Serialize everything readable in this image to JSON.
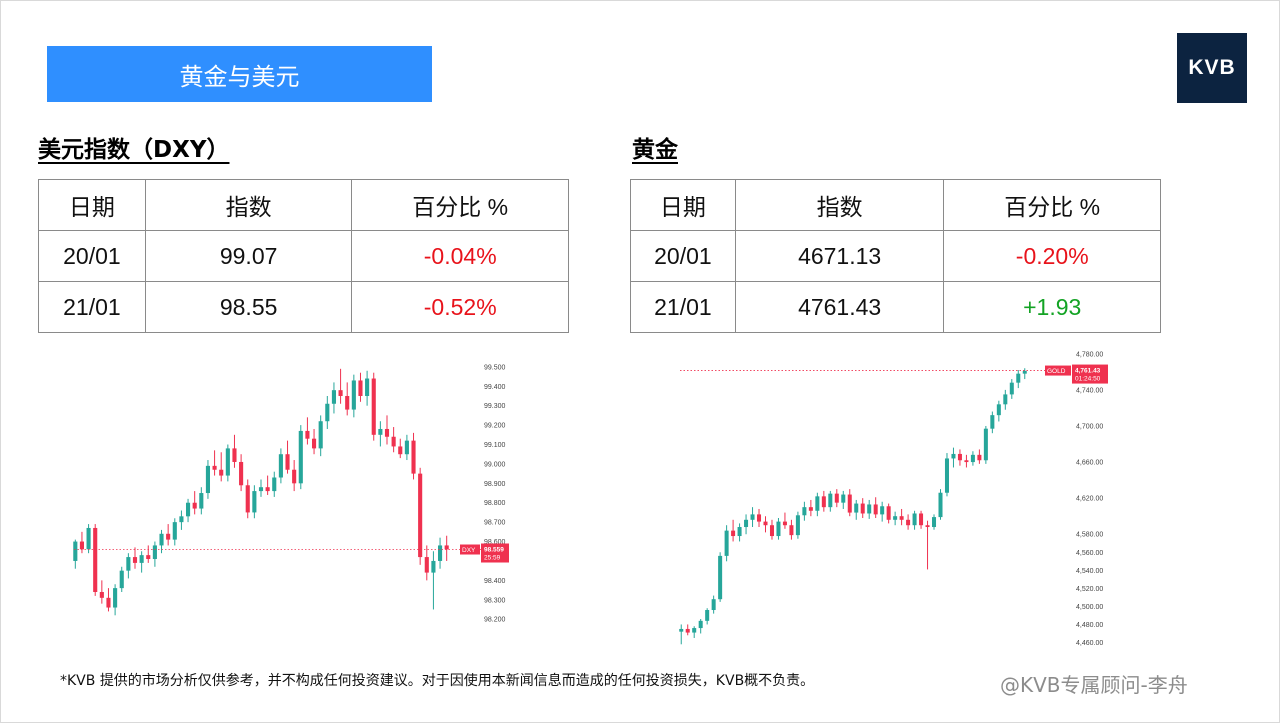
{
  "page": {
    "banner_title": "黄金与美元",
    "logo_text": "KVB"
  },
  "dxy": {
    "title": "美元指数（DXY）",
    "headers": [
      "日期",
      "指数",
      "百分比 %"
    ],
    "rows": [
      {
        "date": "20/01",
        "value": "99.07",
        "pct": "-0.04%"
      },
      {
        "date": "21/01",
        "value": "98.55",
        "pct": "-0.52%"
      }
    ]
  },
  "gold": {
    "title": "黄金",
    "headers": [
      "日期",
      "指数",
      "百分比 %"
    ],
    "rows": [
      {
        "date": "20/01",
        "value": "4671.13",
        "pct": "-0.20%"
      },
      {
        "date": "21/01",
        "value": "4761.43",
        "pct": "+1.93"
      }
    ]
  },
  "footer": {
    "disclaimer": "*KVB 提供的市场分析仅供参考，并不构成任何投资建议。对于因使用本新闻信息而造成的任何投资损失，KVB概不负责。",
    "watermark": "@KVB专属顾问-李舟"
  },
  "colors": {
    "up": "#26a69a",
    "down": "#ef314f",
    "negative_text": "#e8131b",
    "positive_text": "#13a324",
    "banner": "#2f8fff",
    "logo_bg": "#0c2340"
  },
  "chart_data": [
    {
      "type": "candlestick",
      "symbol": "DXY",
      "last_price": "98.559",
      "countdown": "25:59",
      "y_ticks": [
        "99.500",
        "99.400",
        "99.300",
        "99.200",
        "99.100",
        "99.000",
        "98.900",
        "98.800",
        "98.700",
        "98.600",
        "98.400",
        "98.300",
        "98.200"
      ],
      "ylim": [
        98.17,
        99.52
      ],
      "candles": [
        [
          98.5,
          98.61,
          98.46,
          98.6
        ],
        [
          98.6,
          98.65,
          98.54,
          98.56
        ],
        [
          98.56,
          98.69,
          98.54,
          98.67
        ],
        [
          98.67,
          98.69,
          98.32,
          98.34
        ],
        [
          98.34,
          98.4,
          98.28,
          98.31
        ],
        [
          98.31,
          98.36,
          98.24,
          98.26
        ],
        [
          98.26,
          98.38,
          98.22,
          98.36
        ],
        [
          98.36,
          98.47,
          98.34,
          98.45
        ],
        [
          98.45,
          98.54,
          98.41,
          98.52
        ],
        [
          98.52,
          98.57,
          98.46,
          98.49
        ],
        [
          98.49,
          98.55,
          98.44,
          98.53
        ],
        [
          98.53,
          98.58,
          98.49,
          98.51
        ],
        [
          98.51,
          98.6,
          98.47,
          98.58
        ],
        [
          98.58,
          98.66,
          98.54,
          98.64
        ],
        [
          98.64,
          98.69,
          98.58,
          98.61
        ],
        [
          98.61,
          98.72,
          98.58,
          98.7
        ],
        [
          98.7,
          98.76,
          98.66,
          98.73
        ],
        [
          98.73,
          98.82,
          98.7,
          98.8
        ],
        [
          98.8,
          98.86,
          98.74,
          98.77
        ],
        [
          98.77,
          98.88,
          98.74,
          98.85
        ],
        [
          98.85,
          99.02,
          98.82,
          98.99
        ],
        [
          98.99,
          99.07,
          98.94,
          98.97
        ],
        [
          98.97,
          99.06,
          98.91,
          98.94
        ],
        [
          98.94,
          99.1,
          98.91,
          99.08
        ],
        [
          99.08,
          99.15,
          98.98,
          99.01
        ],
        [
          99.01,
          99.05,
          98.86,
          98.89
        ],
        [
          98.89,
          98.92,
          98.72,
          98.75
        ],
        [
          98.75,
          98.89,
          98.72,
          98.86
        ],
        [
          98.86,
          98.92,
          98.83,
          98.88
        ],
        [
          98.88,
          98.94,
          98.84,
          98.86
        ],
        [
          98.86,
          98.96,
          98.83,
          98.93
        ],
        [
          98.93,
          99.08,
          98.9,
          99.05
        ],
        [
          99.05,
          99.12,
          98.95,
          98.97
        ],
        [
          98.97,
          99.02,
          98.86,
          98.9
        ],
        [
          98.9,
          99.2,
          98.87,
          99.17
        ],
        [
          99.17,
          99.24,
          99.1,
          99.13
        ],
        [
          99.13,
          99.18,
          99.05,
          99.08
        ],
        [
          99.08,
          99.25,
          99.04,
          99.22
        ],
        [
          99.22,
          99.35,
          99.18,
          99.31
        ],
        [
          99.31,
          99.42,
          99.26,
          99.38
        ],
        [
          99.38,
          99.49,
          99.31,
          99.35
        ],
        [
          99.35,
          99.42,
          99.25,
          99.28
        ],
        [
          99.28,
          99.46,
          99.24,
          99.43
        ],
        [
          99.43,
          99.47,
          99.32,
          99.35
        ],
        [
          99.35,
          99.48,
          99.3,
          99.44
        ],
        [
          99.44,
          99.47,
          99.12,
          99.15
        ],
        [
          99.15,
          99.22,
          99.09,
          99.18
        ],
        [
          99.18,
          99.25,
          99.1,
          99.14
        ],
        [
          99.14,
          99.19,
          99.06,
          99.09
        ],
        [
          99.09,
          99.13,
          99.03,
          99.05
        ],
        [
          99.05,
          99.15,
          99.02,
          99.12
        ],
        [
          99.12,
          99.16,
          98.92,
          98.95
        ],
        [
          98.95,
          98.98,
          98.48,
          98.52
        ],
        [
          98.52,
          98.58,
          98.4,
          98.44
        ],
        [
          98.44,
          98.55,
          98.25,
          98.5
        ],
        [
          98.5,
          98.62,
          98.46,
          98.58
        ],
        [
          98.58,
          98.63,
          98.5,
          98.56
        ]
      ]
    },
    {
      "type": "candlestick",
      "symbol": "GOLD",
      "last_price": "4,761.43",
      "countdown": "01:24:50",
      "y_ticks": [
        "4,780.00",
        "4,740.00",
        "4,700.00",
        "4,660.00",
        "4,620.00",
        "4,580.00",
        "4,560.00",
        "4,540.00",
        "4,520.00",
        "4,500.00",
        "4,480.00",
        "4,460.00"
      ],
      "ylim": [
        4455,
        4782
      ],
      "candles": [
        [
          4472,
          4480,
          4458,
          4475
        ],
        [
          4475,
          4480,
          4468,
          4471
        ],
        [
          4471,
          4478,
          4465,
          4476
        ],
        [
          4476,
          4486,
          4470,
          4484
        ],
        [
          4484,
          4498,
          4480,
          4496
        ],
        [
          4496,
          4512,
          4492,
          4508
        ],
        [
          4508,
          4560,
          4505,
          4556
        ],
        [
          4556,
          4590,
          4550,
          4584
        ],
        [
          4584,
          4596,
          4572,
          4578
        ],
        [
          4578,
          4592,
          4572,
          4588
        ],
        [
          4588,
          4602,
          4580,
          4596
        ],
        [
          4596,
          4610,
          4588,
          4602
        ],
        [
          4602,
          4608,
          4588,
          4594
        ],
        [
          4594,
          4600,
          4582,
          4590
        ],
        [
          4590,
          4596,
          4574,
          4578
        ],
        [
          4578,
          4598,
          4574,
          4594
        ],
        [
          4594,
          4604,
          4586,
          4590
        ],
        [
          4590,
          4596,
          4574,
          4579
        ],
        [
          4579,
          4605,
          4575,
          4601
        ],
        [
          4601,
          4616,
          4595,
          4610
        ],
        [
          4610,
          4618,
          4600,
          4606
        ],
        [
          4606,
          4626,
          4600,
          4622
        ],
        [
          4622,
          4628,
          4605,
          4610
        ],
        [
          4610,
          4628,
          4605,
          4625
        ],
        [
          4625,
          4630,
          4610,
          4615
        ],
        [
          4615,
          4628,
          4608,
          4624
        ],
        [
          4624,
          4630,
          4600,
          4604
        ],
        [
          4604,
          4618,
          4596,
          4614
        ],
        [
          4614,
          4620,
          4598,
          4603
        ],
        [
          4603,
          4618,
          4597,
          4613
        ],
        [
          4613,
          4621,
          4598,
          4602
        ],
        [
          4602,
          4616,
          4594,
          4611
        ],
        [
          4611,
          4614,
          4592,
          4596
        ],
        [
          4596,
          4605,
          4590,
          4600
        ],
        [
          4600,
          4608,
          4590,
          4596
        ],
        [
          4596,
          4602,
          4585,
          4590
        ],
        [
          4590,
          4606,
          4585,
          4603
        ],
        [
          4603,
          4606,
          4586,
          4590
        ],
        [
          4590,
          4595,
          4541,
          4588
        ],
        [
          4588,
          4602,
          4585,
          4599
        ],
        [
          4599,
          4630,
          4596,
          4626
        ],
        [
          4626,
          4670,
          4622,
          4664
        ],
        [
          4664,
          4676,
          4654,
          4669
        ],
        [
          4669,
          4674,
          4656,
          4662
        ],
        [
          4662,
          4668,
          4654,
          4660
        ],
        [
          4660,
          4672,
          4656,
          4668
        ],
        [
          4668,
          4674,
          4658,
          4662
        ],
        [
          4662,
          4700,
          4658,
          4697
        ],
        [
          4697,
          4716,
          4692,
          4712
        ],
        [
          4712,
          4728,
          4705,
          4724
        ],
        [
          4724,
          4740,
          4718,
          4735
        ],
        [
          4735,
          4752,
          4730,
          4748
        ],
        [
          4748,
          4762,
          4742,
          4758
        ],
        [
          4758,
          4764,
          4752,
          4761
        ]
      ]
    }
  ]
}
